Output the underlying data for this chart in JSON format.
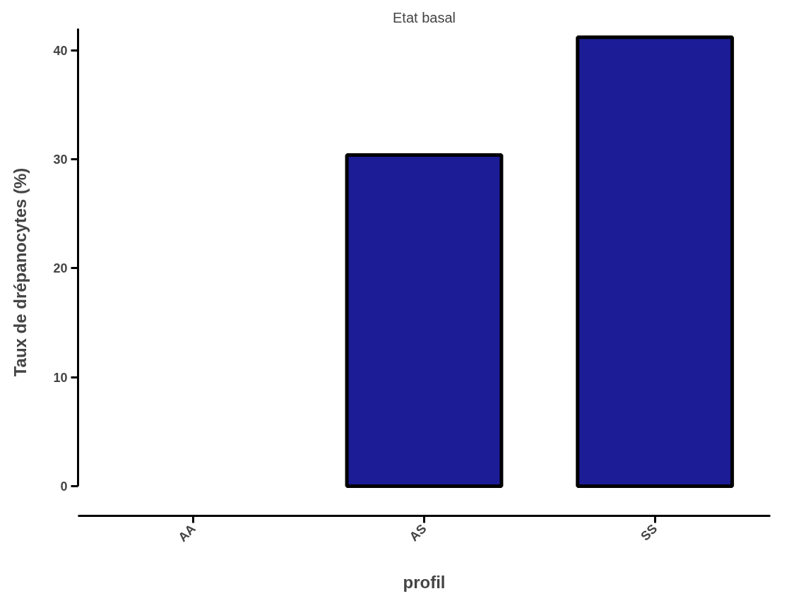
{
  "chart_data": {
    "type": "bar",
    "title": "Etat basal",
    "xlabel": "profil",
    "ylabel": "Taux de drépanocytes (%)",
    "categories": [
      "AA",
      "AS",
      "SS"
    ],
    "values": [
      null,
      30.4,
      41.2
    ],
    "color": "#1c1c96",
    "ylim": [
      0,
      42
    ],
    "yticks": [
      0,
      10,
      20,
      30,
      40
    ],
    "grid": false
  }
}
